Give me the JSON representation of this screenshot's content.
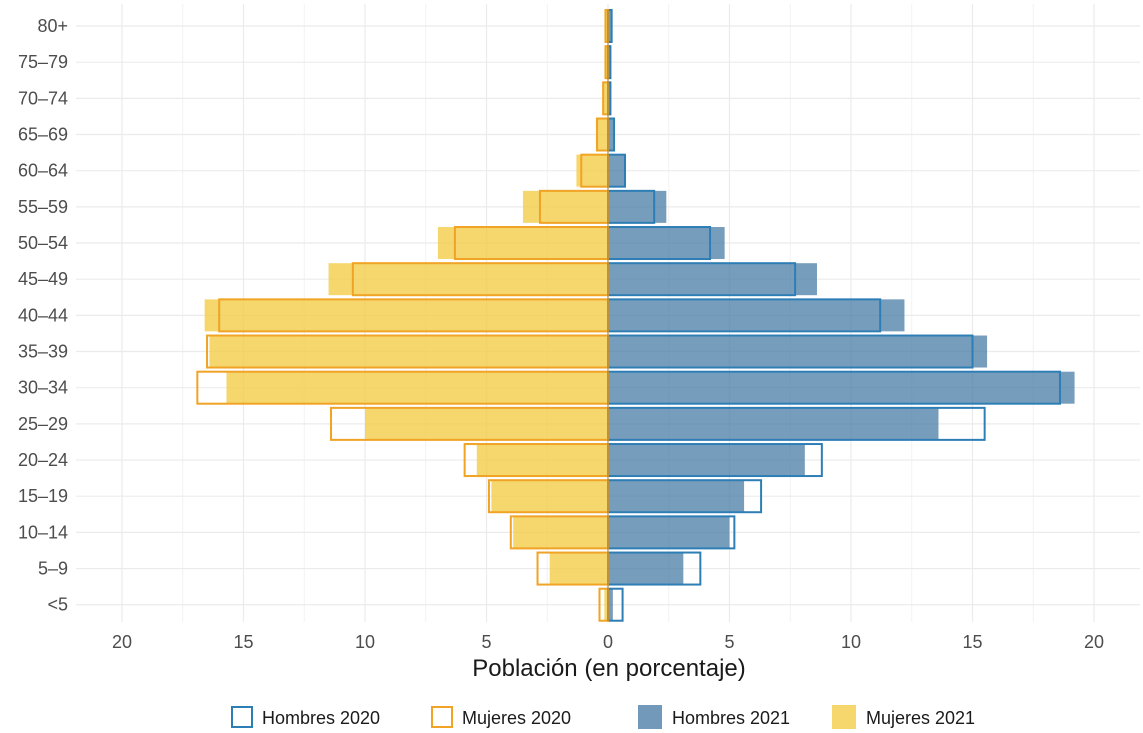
{
  "chart_data": {
    "type": "bar",
    "orientation": "horizontal",
    "categories": [
      "<5",
      "5–9",
      "10–14",
      "15–19",
      "20–24",
      "25–29",
      "30–34",
      "35–39",
      "40–44",
      "45–49",
      "50–54",
      "55–59",
      "60–64",
      "65–69",
      "70–74",
      "75–79",
      "80+"
    ],
    "xlabel": "Población (en porcentaje)",
    "ylabel": "",
    "xlim": [
      -21,
      22
    ],
    "xticks": [
      -20,
      -15,
      -10,
      -5,
      0,
      5,
      10,
      15,
      20
    ],
    "xtick_labels": [
      "20",
      "15",
      "10",
      "5",
      "0",
      "5",
      "10",
      "15",
      "20"
    ],
    "grid": true,
    "legend_position": "bottom",
    "series": [
      {
        "name": "Hombres 2021",
        "style": "filled",
        "side": "right",
        "color": "#4a7ca6",
        "values": [
          0.2,
          3.1,
          5.0,
          5.6,
          8.1,
          13.6,
          19.2,
          15.6,
          12.2,
          8.6,
          4.8,
          2.4,
          0.7,
          0.25,
          0.1,
          0.1,
          0.15
        ]
      },
      {
        "name": "Mujeres 2021",
        "style": "filled",
        "side": "left",
        "color": "#f2cc44",
        "values": [
          0.15,
          2.4,
          3.9,
          4.8,
          5.4,
          10.0,
          15.7,
          16.4,
          16.6,
          11.5,
          7.0,
          3.5,
          1.3,
          0.5,
          0.2,
          0.15,
          0.15
        ]
      },
      {
        "name": "Hombres 2020",
        "style": "outline",
        "side": "right",
        "color": "#2e7eb6",
        "values": [
          0.6,
          3.8,
          5.2,
          6.3,
          8.8,
          15.5,
          18.6,
          15.0,
          11.2,
          7.7,
          4.2,
          1.9,
          0.7,
          0.25,
          0.1,
          0.1,
          0.15
        ]
      },
      {
        "name": "Mujeres 2020",
        "style": "outline",
        "side": "left",
        "color": "#f0a324",
        "values": [
          0.35,
          2.9,
          4.0,
          4.9,
          5.9,
          11.4,
          16.9,
          16.5,
          16.0,
          10.5,
          6.3,
          2.8,
          1.1,
          0.45,
          0.2,
          0.1,
          0.1
        ]
      }
    ],
    "legend": [
      {
        "label": "Hombres 2020",
        "style": "outline",
        "color": "#2e7eb6"
      },
      {
        "label": "Mujeres 2020",
        "style": "outline",
        "color": "#f0a324"
      },
      {
        "label": "Hombres 2021",
        "style": "filled",
        "color": "#4a7ca6"
      },
      {
        "label": "Mujeres 2021",
        "style": "filled",
        "color": "#f2cc44"
      }
    ]
  }
}
